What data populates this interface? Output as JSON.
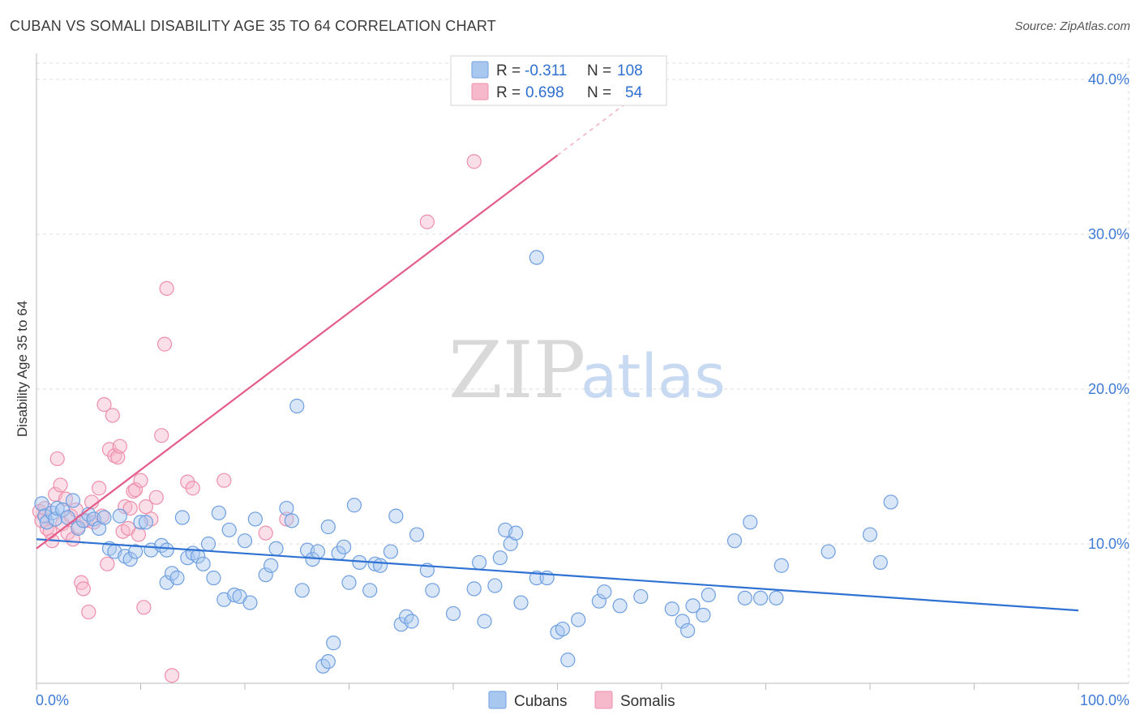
{
  "title": "CUBAN VS SOMALI DISABILITY AGE 35 TO 64 CORRELATION CHART",
  "source": "Source: ZipAtlas.com",
  "watermark": {
    "zip": "ZIP",
    "atlas": "atlas"
  },
  "colors": {
    "cubans_fill": "#a9c8f0",
    "cubans_stroke": "#6f9fe0",
    "cubans_line": "#2f72d3",
    "somalis_fill": "#f6b9cb",
    "somalis_stroke": "#ee8fac",
    "somalis_line": "#e45c8a",
    "axis_text": "#3f7bd6",
    "grid": "#dddddd"
  },
  "legend": {
    "cubans": {
      "r_label": "R =",
      "r_value": "-0.311",
      "n_label": "N =",
      "n_value": "108"
    },
    "somalis": {
      "r_label": "R =",
      "r_value": "0.698",
      "n_label": "N =",
      "n_value": "54"
    }
  },
  "chart_data": {
    "type": "scatter",
    "title": "CUBAN VS SOMALI DISABILITY AGE 35 TO 64 CORRELATION CHART",
    "xlabel": "",
    "ylabel": "Disability Age 35 to 64",
    "xlim": [
      0,
      100
    ],
    "ylim": [
      0,
      42
    ],
    "x_tick_labels": [
      "0.0%",
      "100.0%"
    ],
    "y_ticks": [
      10,
      20,
      30,
      40
    ],
    "y_tick_labels": [
      "10.0%",
      "20.0%",
      "30.0%",
      "40.0%"
    ],
    "grid": true,
    "legend_position": "top-center",
    "series": [
      {
        "name": "Cubans",
        "trend": {
          "x": [
            0,
            100
          ],
          "y": [
            10.3,
            5.7
          ]
        },
        "points": [
          [
            0.5,
            12.6
          ],
          [
            0.8,
            11.8
          ],
          [
            1,
            11.4
          ],
          [
            1.5,
            12.0
          ],
          [
            1.8,
            11.6
          ],
          [
            2,
            12.3
          ],
          [
            2.5,
            12.2
          ],
          [
            3,
            11.7
          ],
          [
            3.5,
            12.8
          ],
          [
            4,
            11.0
          ],
          [
            4.5,
            11.5
          ],
          [
            5,
            11.9
          ],
          [
            5.5,
            11.6
          ],
          [
            6,
            11.0
          ],
          [
            6.5,
            11.7
          ],
          [
            7,
            9.7
          ],
          [
            7.5,
            9.5
          ],
          [
            8,
            11.8
          ],
          [
            8.5,
            9.2
          ],
          [
            9,
            9.0
          ],
          [
            9.5,
            9.5
          ],
          [
            10,
            11.4
          ],
          [
            10.5,
            11.4
          ],
          [
            11,
            9.6
          ],
          [
            12,
            9.9
          ],
          [
            12.5,
            9.6
          ],
          [
            12.5,
            7.5
          ],
          [
            13,
            8.1
          ],
          [
            13.5,
            7.8
          ],
          [
            14,
            11.7
          ],
          [
            14.5,
            9.1
          ],
          [
            15,
            9.4
          ],
          [
            15.5,
            9.2
          ],
          [
            16,
            8.7
          ],
          [
            16.5,
            10.0
          ],
          [
            17,
            7.8
          ],
          [
            17.5,
            12.0
          ],
          [
            18,
            6.4
          ],
          [
            18.5,
            10.9
          ],
          [
            19,
            6.7
          ],
          [
            19.5,
            6.6
          ],
          [
            20,
            10.2
          ],
          [
            20.5,
            6.2
          ],
          [
            21,
            11.6
          ],
          [
            22,
            8.0
          ],
          [
            22.5,
            8.6
          ],
          [
            23,
            9.7
          ],
          [
            24,
            12.3
          ],
          [
            24.5,
            11.5
          ],
          [
            25,
            18.9
          ],
          [
            25.5,
            7.0
          ],
          [
            26,
            9.6
          ],
          [
            26.5,
            9.0
          ],
          [
            27,
            9.5
          ],
          [
            27.5,
            2.1
          ],
          [
            28,
            2.4
          ],
          [
            28,
            11.1
          ],
          [
            28.5,
            3.6
          ],
          [
            29,
            9.4
          ],
          [
            29.5,
            9.8
          ],
          [
            30,
            7.5
          ],
          [
            30.5,
            12.5
          ],
          [
            31,
            8.8
          ],
          [
            32,
            7.0
          ],
          [
            32.5,
            8.7
          ],
          [
            33,
            8.6
          ],
          [
            34,
            9.5
          ],
          [
            34.5,
            11.8
          ],
          [
            35,
            4.8
          ],
          [
            35.5,
            5.3
          ],
          [
            36,
            5.0
          ],
          [
            36.5,
            10.6
          ],
          [
            37.5,
            8.3
          ],
          [
            38,
            7.0
          ],
          [
            40,
            5.5
          ],
          [
            42,
            7.1
          ],
          [
            42.5,
            8.8
          ],
          [
            43,
            5.0
          ],
          [
            44,
            7.3
          ],
          [
            44.5,
            9.1
          ],
          [
            45,
            10.9
          ],
          [
            45.5,
            10.0
          ],
          [
            46,
            10.7
          ],
          [
            46.5,
            6.2
          ],
          [
            48,
            28.5
          ],
          [
            48,
            7.8
          ],
          [
            49,
            7.8
          ],
          [
            50,
            4.3
          ],
          [
            50.5,
            4.5
          ],
          [
            51,
            2.5
          ],
          [
            52,
            5.1
          ],
          [
            54,
            6.3
          ],
          [
            54.5,
            6.9
          ],
          [
            56,
            6.0
          ],
          [
            58,
            6.6
          ],
          [
            61,
            5.8
          ],
          [
            62,
            5.0
          ],
          [
            62.5,
            4.4
          ],
          [
            63,
            6.0
          ],
          [
            64,
            5.4
          ],
          [
            64.5,
            6.7
          ],
          [
            67,
            10.2
          ],
          [
            68,
            6.5
          ],
          [
            68.5,
            11.4
          ],
          [
            69.5,
            6.5
          ],
          [
            71,
            6.5
          ],
          [
            71.5,
            8.6
          ],
          [
            76,
            9.5
          ],
          [
            80,
            10.6
          ],
          [
            81,
            8.8
          ],
          [
            82,
            12.7
          ]
        ]
      },
      {
        "name": "Somalis",
        "trend": {
          "x": [
            0,
            50
          ],
          "y": [
            9.7,
            35.1
          ]
        },
        "trend_dashed": {
          "x": [
            50,
            60
          ],
          "y": [
            35.1,
            40.2
          ]
        },
        "points": [
          [
            0.3,
            12.1
          ],
          [
            0.5,
            11.5
          ],
          [
            0.8,
            12.3
          ],
          [
            1,
            11.0
          ],
          [
            1.3,
            10.8
          ],
          [
            1.5,
            10.2
          ],
          [
            1.8,
            13.2
          ],
          [
            2,
            15.5
          ],
          [
            2.3,
            13.8
          ],
          [
            2.5,
            11.3
          ],
          [
            2.8,
            12.9
          ],
          [
            3,
            10.7
          ],
          [
            3.3,
            11.8
          ],
          [
            3.5,
            10.3
          ],
          [
            3.8,
            12.2
          ],
          [
            4,
            11.1
          ],
          [
            4.3,
            7.5
          ],
          [
            4.5,
            7.1
          ],
          [
            4.8,
            11.5
          ],
          [
            5,
            5.6
          ],
          [
            5.3,
            12.7
          ],
          [
            5.5,
            11.4
          ],
          [
            6,
            13.6
          ],
          [
            6.3,
            11.8
          ],
          [
            6.5,
            19.0
          ],
          [
            6.8,
            8.7
          ],
          [
            7,
            16.1
          ],
          [
            7.3,
            18.3
          ],
          [
            7.5,
            15.7
          ],
          [
            7.8,
            15.6
          ],
          [
            8,
            16.3
          ],
          [
            8.3,
            10.8
          ],
          [
            8.5,
            12.4
          ],
          [
            8.8,
            11.0
          ],
          [
            9,
            12.3
          ],
          [
            9.3,
            13.4
          ],
          [
            9.5,
            13.5
          ],
          [
            9.8,
            10.6
          ],
          [
            10,
            14.1
          ],
          [
            10.3,
            5.9
          ],
          [
            10.5,
            12.4
          ],
          [
            11,
            11.6
          ],
          [
            11.5,
            13.0
          ],
          [
            12,
            17.0
          ],
          [
            12.3,
            22.9
          ],
          [
            12.5,
            26.5
          ],
          [
            13,
            1.5
          ],
          [
            14.5,
            14.0
          ],
          [
            15,
            13.6
          ],
          [
            18,
            14.1
          ],
          [
            22,
            10.7
          ],
          [
            24,
            11.6
          ],
          [
            37.5,
            30.8
          ],
          [
            42,
            34.7
          ]
        ]
      }
    ]
  }
}
